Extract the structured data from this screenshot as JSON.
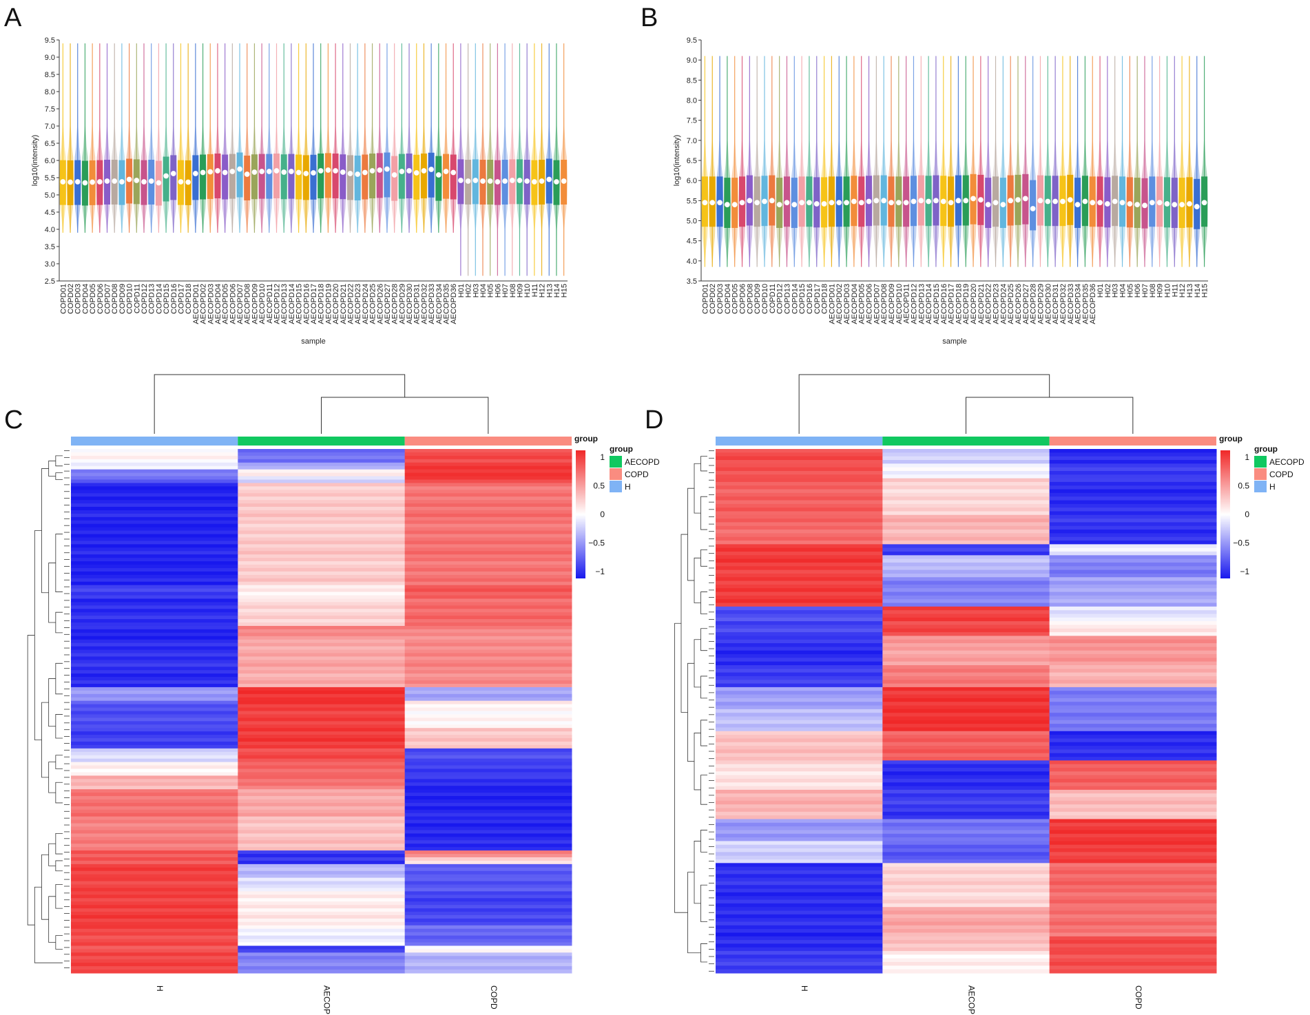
{
  "panels": {
    "A": "A",
    "B": "B",
    "C": "C",
    "D": "D"
  },
  "colors": {
    "AECOPD": "#10c860",
    "COPD": "#fa8c80",
    "H": "#7fb3f5",
    "scale_low": "#1818ee",
    "scale_mid": "#ffffff",
    "scale_high": "#f02828",
    "palette": [
      "#f6c318",
      "#e8a800",
      "#3a6fd1",
      "#2a9d58",
      "#f28d3a",
      "#d8486d",
      "#8a5cc8",
      "#b8a9a0",
      "#62b6de",
      "#ec7a3f",
      "#9aa55a",
      "#c7548c",
      "#5e8fe0",
      "#f2a0a6",
      "#46b08a",
      "#7e63c7"
    ]
  },
  "chart_data": [
    {
      "panel": "A",
      "type": "violin",
      "title": "",
      "xlabel": "sample",
      "ylabel": "log10(intensity)",
      "ylim": [
        2.5,
        9.5
      ],
      "yticks": [
        "2.5",
        "3.0",
        "3.5",
        "4.0",
        "4.5",
        "5.0",
        "5.5",
        "6.0",
        "6.5",
        "7.0",
        "7.5",
        "8.0",
        "8.5",
        "9.0",
        "9.5"
      ],
      "categories": [
        "COPD01",
        "COPD02",
        "COPD03",
        "COPD04",
        "COPD05",
        "COPD06",
        "COPD07",
        "COPD08",
        "COPD09",
        "COPD10",
        "COPD11",
        "COPD12",
        "COPD13",
        "COPD14",
        "COPD15",
        "COPD16",
        "COPD17",
        "COPD18",
        "AECOPD01",
        "AECOPD02",
        "AECOPD03",
        "AECOPD04",
        "AECOPD05",
        "AECOPD06",
        "AECOPD07",
        "AECOPD08",
        "AECOPD09",
        "AECOPD10",
        "AECOPD11",
        "AECOPD12",
        "AECOPD13",
        "AECOPD14",
        "AECOPD15",
        "AECOPD16",
        "AECOPD17",
        "AECOPD18",
        "AECOPD19",
        "AECOPD20",
        "AECOPD21",
        "AECOPD22",
        "AECOPD23",
        "AECOPD24",
        "AECOPD25",
        "AECOPD26",
        "AECOPD27",
        "AECOPD28",
        "AECOPD29",
        "AECOPD30",
        "AECOPD31",
        "AECOPD32",
        "AECOPD33",
        "AECOPD34",
        "AECOPD35",
        "AECOPD36",
        "H01",
        "H02",
        "H03",
        "H04",
        "H05",
        "H06",
        "H07",
        "H08",
        "H09",
        "H10",
        "H11",
        "H12",
        "H13",
        "H14",
        "H15"
      ],
      "medians": [
        5.38,
        5.37,
        5.38,
        5.35,
        5.37,
        5.38,
        5.4,
        5.4,
        5.38,
        5.45,
        5.42,
        5.38,
        5.4,
        5.35,
        5.55,
        5.62,
        5.38,
        5.37,
        5.62,
        5.65,
        5.67,
        5.7,
        5.65,
        5.68,
        5.75,
        5.6,
        5.66,
        5.68,
        5.68,
        5.7,
        5.66,
        5.68,
        5.65,
        5.62,
        5.64,
        5.7,
        5.72,
        5.7,
        5.66,
        5.62,
        5.6,
        5.65,
        5.7,
        5.72,
        5.75,
        5.58,
        5.68,
        5.7,
        5.64,
        5.7,
        5.74,
        5.58,
        5.68,
        5.65,
        5.42,
        5.4,
        5.42,
        5.4,
        5.4,
        5.38,
        5.4,
        5.42,
        5.42,
        5.4,
        5.38,
        5.4,
        5.45,
        5.38,
        5.4
      ],
      "q1": 4.75,
      "q3": 6.05,
      "min": 3.9,
      "max": 9.4,
      "h_min": 2.65
    },
    {
      "panel": "B",
      "type": "violin",
      "title": "",
      "xlabel": "sample",
      "ylabel": "log10(intensity)",
      "ylim": [
        3.5,
        9.5
      ],
      "yticks": [
        "3.5",
        "4.0",
        "4.5",
        "5.0",
        "5.5",
        "6.0",
        "6.5",
        "7.0",
        "7.5",
        "8.0",
        "8.5",
        "9.0",
        "9.5"
      ],
      "categories": [
        "COPD01",
        "COPD02",
        "COPD03",
        "COPD04",
        "COPD05",
        "COPD06",
        "COPD08",
        "COPD09",
        "COPD10",
        "COPD11",
        "COPD12",
        "COPD13",
        "COPD14",
        "COPD15",
        "COPD16",
        "COPD17",
        "COPD18",
        "AECOPD01",
        "AECOPD02",
        "AECOPD03",
        "AECOPD04",
        "AECOPD05",
        "AECOPD06",
        "AECOPD07",
        "AECOPD08",
        "AECOPD09",
        "AECOPD10",
        "AECOPD11",
        "AECOPD12",
        "AECOPD13",
        "AECOPD14",
        "AECOPD15",
        "AECOPD16",
        "AECOPD17",
        "AECOPD18",
        "AECOPD19",
        "AECOPD20",
        "AECOPD21",
        "AECOPD22",
        "AECOPD23",
        "AECOPD24",
        "AECOPD25",
        "AECOPD26",
        "AECOPD27",
        "AECOPD28",
        "AECOPD29",
        "AECOPD30",
        "AECOPD31",
        "AECOPD32",
        "AECOPD33",
        "AECOPD34",
        "AECOPD35",
        "AECOPD36",
        "H01",
        "H02",
        "H03",
        "H04",
        "H05",
        "H06",
        "H07",
        "H08",
        "H09",
        "H10",
        "H11",
        "H12",
        "H13",
        "H14",
        "H15"
      ],
      "medians": [
        5.45,
        5.45,
        5.45,
        5.4,
        5.4,
        5.45,
        5.5,
        5.45,
        5.48,
        5.5,
        5.4,
        5.45,
        5.4,
        5.45,
        5.45,
        5.42,
        5.42,
        5.45,
        5.45,
        5.45,
        5.48,
        5.45,
        5.48,
        5.5,
        5.5,
        5.45,
        5.45,
        5.45,
        5.48,
        5.5,
        5.48,
        5.5,
        5.48,
        5.45,
        5.5,
        5.5,
        5.55,
        5.52,
        5.4,
        5.45,
        5.4,
        5.5,
        5.52,
        5.55,
        5.3,
        5.5,
        5.48,
        5.48,
        5.48,
        5.52,
        5.4,
        5.48,
        5.45,
        5.45,
        5.42,
        5.48,
        5.45,
        5.42,
        5.4,
        5.38,
        5.45,
        5.45,
        5.42,
        5.4,
        5.4,
        5.42,
        5.35,
        5.45
      ],
      "q1": 4.85,
      "q3": 6.1,
      "min": 3.85,
      "max": 9.1
    },
    {
      "panel": "C",
      "type": "heatmap",
      "columns": [
        "H",
        "AECOPD",
        "COPD"
      ],
      "legend_title": "group",
      "legend_items": [
        "AECOPD",
        "COPD",
        "H"
      ],
      "scale_title": "group",
      "scale_ticks": [
        "1",
        "0.5",
        "0",
        "−0.5",
        "−1"
      ],
      "scale_range": [
        -1,
        1
      ],
      "row_blocks": [
        {
          "rows": 4,
          "values": [
            0.05,
            -0.6,
            0.85
          ]
        },
        {
          "rows": 2,
          "values": [
            -0.1,
            -0.4,
            0.9
          ]
        },
        {
          "rows": 2,
          "values": [
            -0.55,
            0.1,
            0.95
          ]
        },
        {
          "rows": 2,
          "values": [
            -0.7,
            -0.2,
            0.85
          ]
        },
        {
          "rows": 30,
          "values": [
            -0.95,
            0.25,
            0.65
          ]
        },
        {
          "rows": 4,
          "values": [
            -0.85,
            0.05,
            0.75
          ]
        },
        {
          "rows": 8,
          "values": [
            -0.9,
            0.2,
            0.7
          ]
        },
        {
          "rows": 4,
          "values": [
            -0.95,
            0.55,
            0.55
          ]
        },
        {
          "rows": 14,
          "values": [
            -0.9,
            0.4,
            0.55
          ]
        },
        {
          "rows": 4,
          "values": [
            -0.45,
            0.95,
            -0.4
          ]
        },
        {
          "rows": 8,
          "values": [
            -0.75,
            0.9,
            0.05
          ]
        },
        {
          "rows": 6,
          "values": [
            -0.85,
            0.9,
            0.25
          ]
        },
        {
          "rows": 4,
          "values": [
            -0.15,
            0.85,
            -0.75
          ]
        },
        {
          "rows": 4,
          "values": [
            0.05,
            0.7,
            -0.85
          ]
        },
        {
          "rows": 4,
          "values": [
            0.35,
            0.65,
            -0.9
          ]
        },
        {
          "rows": 8,
          "values": [
            0.65,
            0.4,
            -0.95
          ]
        },
        {
          "rows": 10,
          "values": [
            0.6,
            0.3,
            -0.92
          ]
        },
        {
          "rows": 2,
          "values": [
            0.75,
            -0.9,
            0.55
          ]
        },
        {
          "rows": 2,
          "values": [
            0.8,
            -0.85,
            0.2
          ]
        },
        {
          "rows": 4,
          "values": [
            0.9,
            -0.3,
            -0.7
          ]
        },
        {
          "rows": 4,
          "values": [
            0.85,
            -0.15,
            -0.75
          ]
        },
        {
          "rows": 10,
          "values": [
            0.9,
            0.1,
            -0.8
          ]
        },
        {
          "rows": 6,
          "values": [
            0.85,
            -0.05,
            -0.65
          ]
        },
        {
          "rows": 2,
          "values": [
            0.8,
            -0.8,
            0.05
          ]
        },
        {
          "rows": 6,
          "values": [
            0.85,
            -0.55,
            -0.35
          ]
        }
      ]
    },
    {
      "panel": "D",
      "type": "heatmap",
      "columns": [
        "H",
        "AECOPD",
        "COPD"
      ],
      "legend_title": "group",
      "legend_items": [
        "AECOPD",
        "COPD",
        "H"
      ],
      "scale_title": "group",
      "scale_ticks": [
        "1",
        "0.5",
        "0",
        "−0.5",
        "−1"
      ],
      "scale_range": [
        -1,
        1
      ],
      "row_blocks": [
        {
          "rows": 4,
          "values": [
            0.85,
            -0.2,
            -0.9
          ]
        },
        {
          "rows": 4,
          "values": [
            0.8,
            -0.05,
            -0.85
          ]
        },
        {
          "rows": 10,
          "values": [
            0.75,
            0.2,
            -0.9
          ]
        },
        {
          "rows": 8,
          "values": [
            0.7,
            0.35,
            -0.88
          ]
        },
        {
          "rows": 3,
          "values": [
            0.9,
            -0.85,
            -0.1
          ]
        },
        {
          "rows": 6,
          "values": [
            0.9,
            -0.3,
            -0.55
          ]
        },
        {
          "rows": 8,
          "values": [
            0.9,
            -0.55,
            -0.4
          ]
        },
        {
          "rows": 4,
          "values": [
            -0.75,
            0.9,
            -0.1
          ]
        },
        {
          "rows": 4,
          "values": [
            -0.8,
            0.85,
            0.1
          ]
        },
        {
          "rows": 8,
          "values": [
            -0.9,
            0.45,
            0.5
          ]
        },
        {
          "rows": 6,
          "values": [
            -0.85,
            0.6,
            0.35
          ]
        },
        {
          "rows": 6,
          "values": [
            -0.4,
            0.95,
            -0.55
          ]
        },
        {
          "rows": 6,
          "values": [
            -0.3,
            0.95,
            -0.6
          ]
        },
        {
          "rows": 8,
          "values": [
            0.3,
            0.75,
            -0.9
          ]
        },
        {
          "rows": 8,
          "values": [
            0.15,
            -0.9,
            0.75
          ]
        },
        {
          "rows": 8,
          "values": [
            0.35,
            -0.85,
            0.3
          ]
        },
        {
          "rows": 6,
          "values": [
            -0.45,
            -0.6,
            0.92
          ]
        },
        {
          "rows": 6,
          "values": [
            -0.2,
            -0.7,
            0.9
          ]
        },
        {
          "rows": 12,
          "values": [
            -0.9,
            0.2,
            0.7
          ]
        },
        {
          "rows": 8,
          "values": [
            -0.92,
            0.4,
            0.65
          ]
        },
        {
          "rows": 4,
          "values": [
            -0.9,
            0.3,
            0.85
          ]
        },
        {
          "rows": 6,
          "values": [
            -0.85,
            0.05,
            0.8
          ]
        }
      ]
    }
  ]
}
